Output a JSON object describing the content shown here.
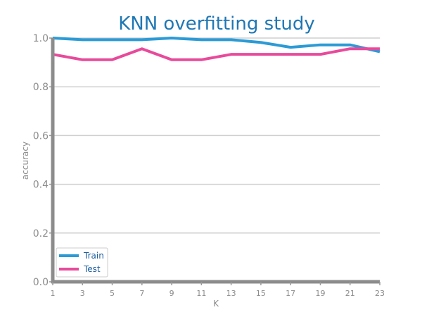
{
  "chart_data": {
    "type": "line",
    "title": "KNN overfitting study",
    "xlabel": "K",
    "ylabel": "accuracy",
    "x": [
      1,
      3,
      5,
      7,
      9,
      11,
      13,
      15,
      17,
      19,
      21,
      23
    ],
    "x_ticks": [
      "1",
      "3",
      "5",
      "7",
      "9",
      "11",
      "13",
      "15",
      "17",
      "19",
      "21",
      "23"
    ],
    "y_ticks": [
      "0.0",
      "0.2",
      "0.4",
      "0.6",
      "0.8",
      "1.0"
    ],
    "xlim": [
      1,
      23
    ],
    "ylim": [
      0,
      1.0
    ],
    "grid": "horizontal",
    "legend_position": "bottom-left",
    "series": [
      {
        "name": "Train",
        "color": "#2b9bd6",
        "values": [
          1.0,
          0.993,
          0.993,
          0.993,
          1.0,
          0.993,
          0.993,
          0.982,
          0.962,
          0.972,
          0.972,
          0.944
        ]
      },
      {
        "name": "Test",
        "color": "#e84a9b",
        "values": [
          0.933,
          0.911,
          0.911,
          0.956,
          0.911,
          0.911,
          0.933,
          0.933,
          0.933,
          0.933,
          0.956,
          0.956
        ]
      }
    ]
  }
}
